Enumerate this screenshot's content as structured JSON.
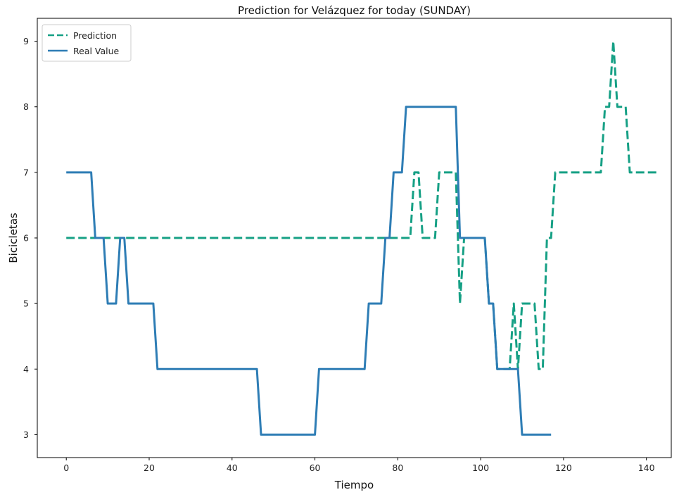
{
  "chart_data": {
    "type": "line",
    "title": "Prediction for Velázquez for today (SUNDAY)",
    "xlabel": "Tiempo",
    "ylabel": "Bicicletas",
    "xlim": [
      -7,
      146
    ],
    "ylim": [
      2.65,
      9.35
    ],
    "xticks": [
      0,
      20,
      40,
      60,
      80,
      100,
      120,
      140
    ],
    "yticks": [
      3,
      4,
      5,
      6,
      7,
      8,
      9
    ],
    "grid": false,
    "legend_position": "top-left",
    "series": [
      {
        "name": "Prediction",
        "style": "dashed",
        "color": "#16a085",
        "points": [
          [
            0,
            6
          ],
          [
            83,
            6
          ],
          [
            84,
            7
          ],
          [
            85,
            7
          ],
          [
            86,
            6
          ],
          [
            89,
            6
          ],
          [
            90,
            7
          ],
          [
            94,
            7
          ],
          [
            95,
            5
          ],
          [
            96,
            6
          ],
          [
            101,
            6
          ],
          [
            102,
            5
          ],
          [
            103,
            5
          ],
          [
            104,
            4
          ],
          [
            107,
            4
          ],
          [
            108,
            5
          ],
          [
            109,
            4
          ],
          [
            110,
            5
          ],
          [
            113,
            5
          ],
          [
            114,
            4
          ],
          [
            115,
            4
          ],
          [
            116,
            6
          ],
          [
            117,
            6
          ],
          [
            118,
            7
          ],
          [
            129,
            7
          ],
          [
            130,
            8
          ],
          [
            131,
            8
          ],
          [
            132,
            9
          ],
          [
            133,
            8
          ],
          [
            135,
            8
          ],
          [
            136,
            7
          ],
          [
            143,
            7
          ]
        ]
      },
      {
        "name": "Real Value",
        "style": "solid",
        "color": "#2e7db5",
        "points": [
          [
            0,
            7
          ],
          [
            6,
            7
          ],
          [
            7,
            6
          ],
          [
            9,
            6
          ],
          [
            10,
            5
          ],
          [
            12,
            5
          ],
          [
            13,
            6
          ],
          [
            14,
            6
          ],
          [
            15,
            5
          ],
          [
            21,
            5
          ],
          [
            22,
            4
          ],
          [
            46,
            4
          ],
          [
            47,
            3
          ],
          [
            60,
            3
          ],
          [
            61,
            4
          ],
          [
            72,
            4
          ],
          [
            73,
            5
          ],
          [
            76,
            5
          ],
          [
            77,
            6
          ],
          [
            78,
            6
          ],
          [
            79,
            7
          ],
          [
            81,
            7
          ],
          [
            82,
            8
          ],
          [
            94,
            8
          ],
          [
            95,
            6
          ],
          [
            101,
            6
          ],
          [
            102,
            5
          ],
          [
            103,
            5
          ],
          [
            104,
            4
          ],
          [
            109,
            4
          ],
          [
            110,
            3
          ],
          [
            117,
            3
          ]
        ]
      }
    ]
  }
}
